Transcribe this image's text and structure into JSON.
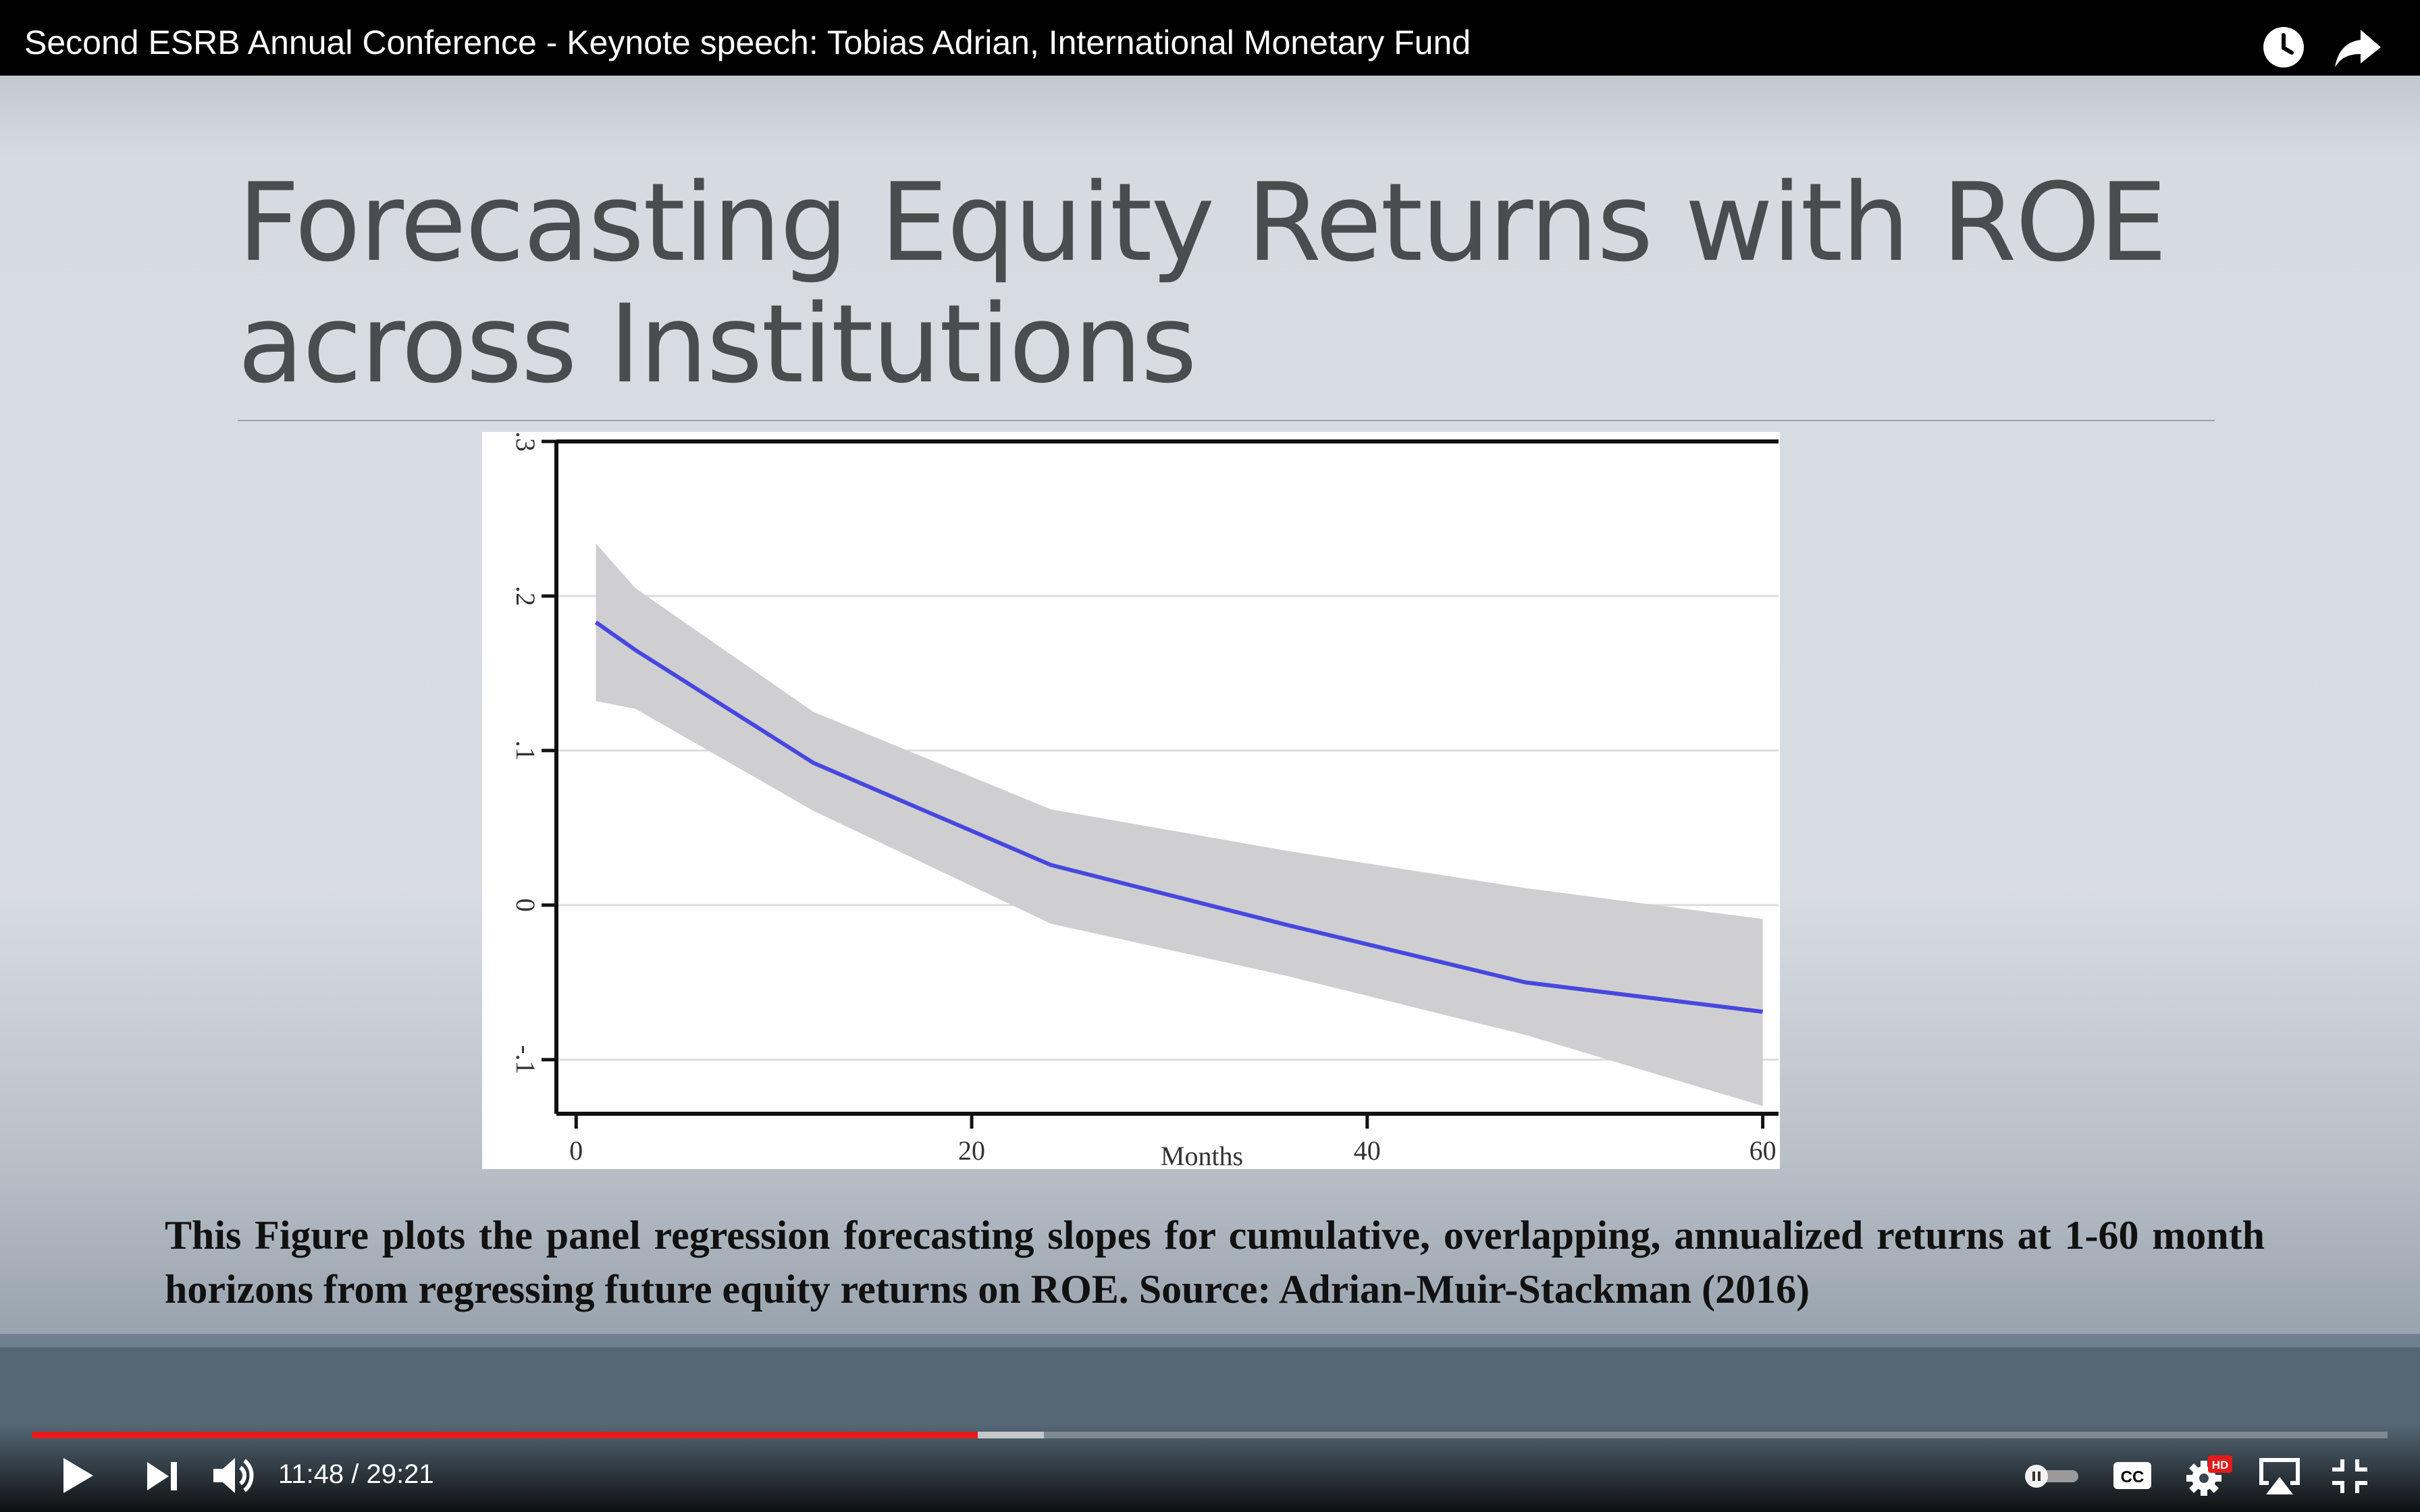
{
  "player": {
    "video_title": "Second ESRB Annual Conference - Keynote speech: Tobias Adrian, International Monetary Fund",
    "current_time": "11:48",
    "time_separator": " / ",
    "duration": "29:21",
    "progress_played": 0.4015,
    "progress_buffered": 0.4295,
    "settings_badge": "HD",
    "captions_label": "CC",
    "icons": [
      "clock-icon",
      "share-arrow-icon",
      "play-icon",
      "skip-next-icon",
      "volume-icon",
      "autoplay-toggle-icon",
      "captions-icon",
      "gear-icon",
      "airplay-icon",
      "exit-fullscreen-icon"
    ]
  },
  "slide": {
    "title_line1": "Forecasting Equity Returns with ROE",
    "title_line2": "across Institutions",
    "caption": "This Figure plots the panel regression forecasting slopes for cumulative, overlapping, annualized returns at 1-60 month horizons from regressing future equity returns on ROE.  Source: Adrian-Muir-Stackman (2016)"
  },
  "chart_data": {
    "type": "line",
    "title": "",
    "xlabel": "Months",
    "ylabel": "",
    "xlim": [
      -1,
      60.8
    ],
    "ylim": [
      -0.135,
      0.3
    ],
    "xticks": [
      0,
      20,
      40,
      60
    ],
    "xtick_labels": [
      "0",
      "20",
      "40",
      "60"
    ],
    "yticks": [
      -0.1,
      0,
      0.1,
      0.2,
      0.3
    ],
    "ytick_labels": [
      "-.1",
      "0",
      ".1",
      ".2",
      ".3"
    ],
    "grid": true,
    "series": [
      {
        "x": [
          1,
          3,
          12,
          24,
          36,
          48,
          60
        ],
        "values": [
          0.183,
          0.165,
          0.092,
          0.026,
          -0.013,
          -0.05,
          -0.069
        ],
        "lower": [
          0.132,
          0.127,
          0.061,
          -0.012,
          -0.046,
          -0.084,
          -0.13
        ],
        "upper": [
          0.234,
          0.205,
          0.125,
          0.062,
          0.035,
          0.011,
          -0.009
        ],
        "color": "#4747e0",
        "band_color": "#cfcfd1"
      }
    ]
  }
}
